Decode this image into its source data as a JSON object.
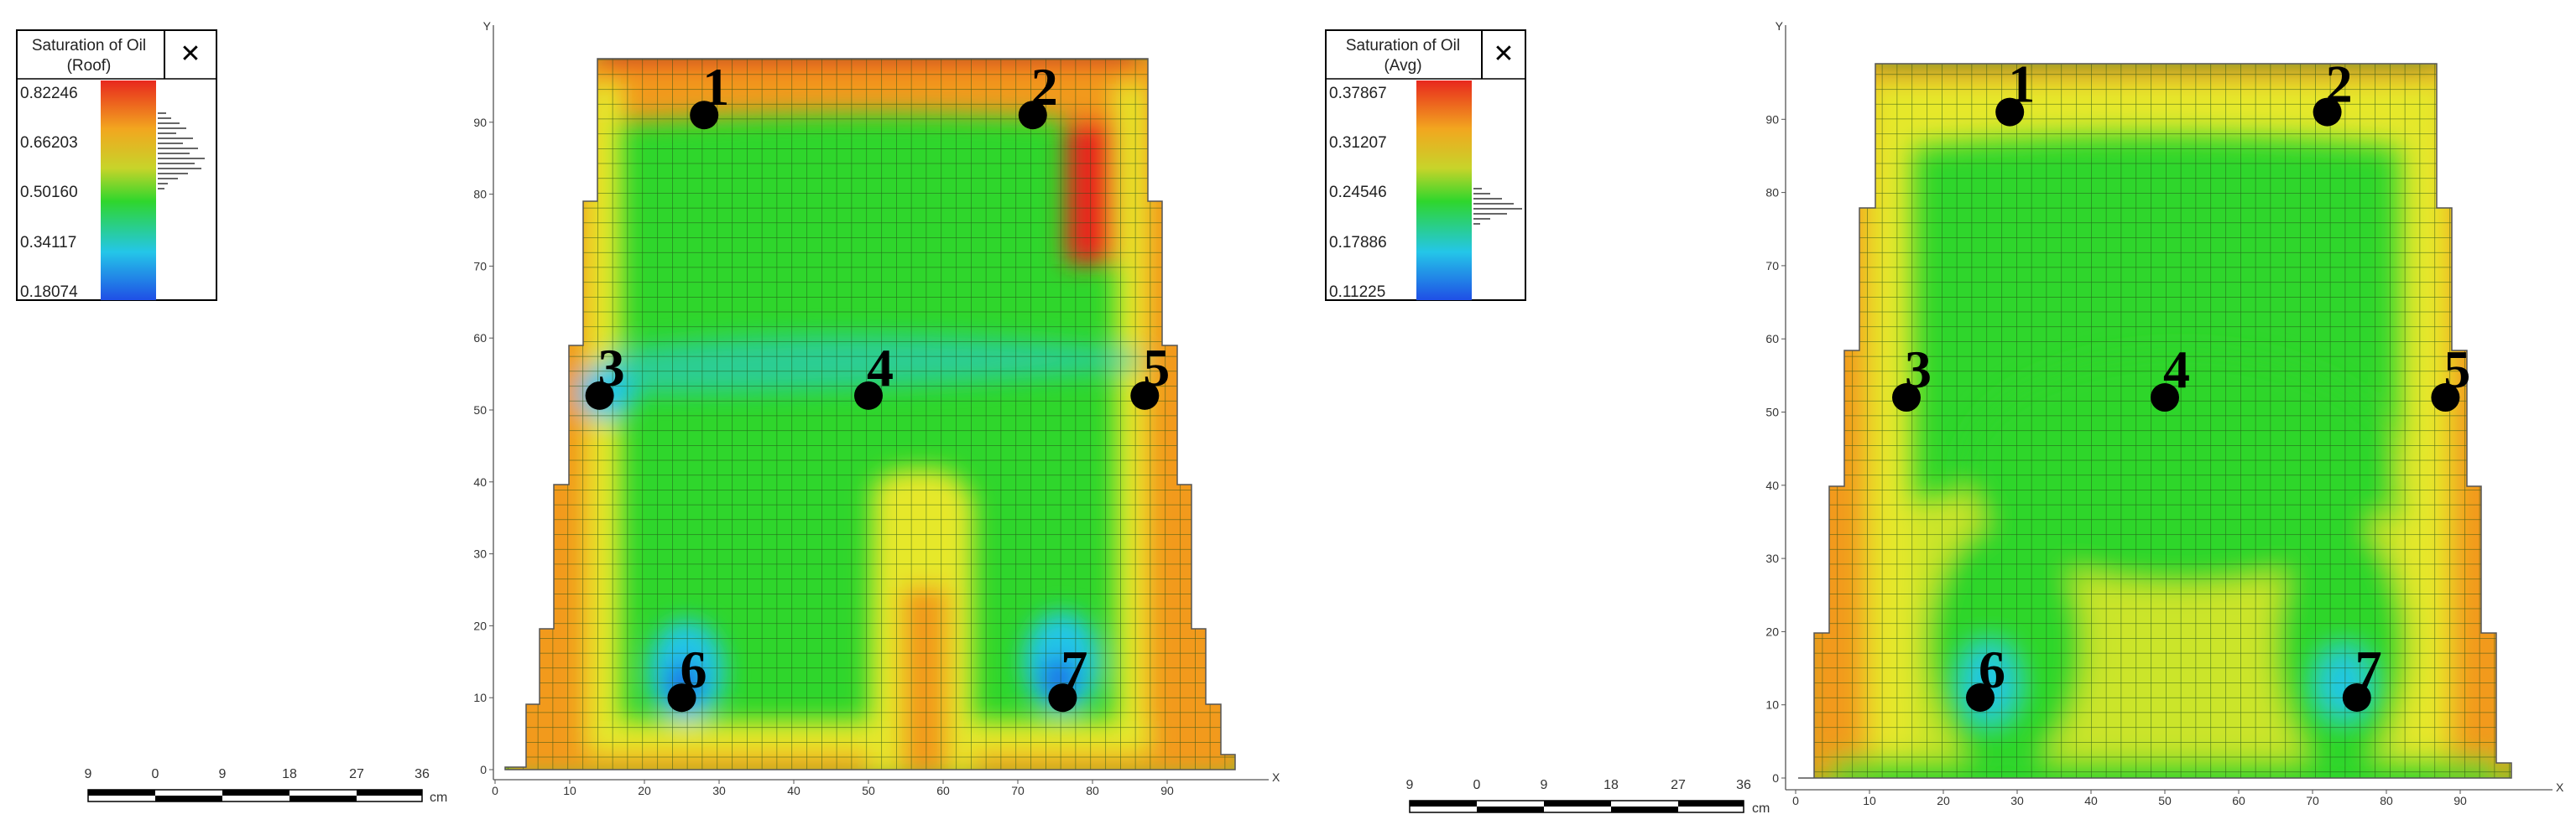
{
  "panels": [
    {
      "id": "left",
      "legend": {
        "title_line1": "Saturation of Oil",
        "title_line2": "(Roof)",
        "ticks": [
          "0.82246",
          "0.66203",
          "0.50160",
          "0.34117",
          "0.18074"
        ],
        "close_glyph": "✕"
      },
      "scale_bar": {
        "labels": [
          "9",
          "0",
          "9",
          "18",
          "27",
          "36"
        ],
        "unit": "cm"
      },
      "axes": {
        "x_ticks": [
          "0",
          "10",
          "20",
          "30",
          "40",
          "50",
          "60",
          "70",
          "80",
          "90"
        ],
        "y_ticks": [
          "0",
          "10",
          "20",
          "30",
          "40",
          "50",
          "60",
          "70",
          "80",
          "90"
        ],
        "x_letter": "X",
        "y_letter": "Y"
      },
      "wells": [
        {
          "label": "1",
          "x": 28,
          "y": 91
        },
        {
          "label": "2",
          "x": 72,
          "y": 91
        },
        {
          "label": "3",
          "x": 14,
          "y": 52
        },
        {
          "label": "4",
          "x": 50,
          "y": 52
        },
        {
          "label": "5",
          "x": 87,
          "y": 52
        },
        {
          "label": "6",
          "x": 25,
          "y": 10
        },
        {
          "label": "7",
          "x": 76,
          "y": 10
        }
      ]
    },
    {
      "id": "right",
      "legend": {
        "title_line1": "Saturation of Oil",
        "title_line2": "(Avg)",
        "ticks": [
          "0.37867",
          "0.31207",
          "0.24546",
          "0.17886",
          "0.11225"
        ],
        "close_glyph": "✕"
      },
      "scale_bar": {
        "labels": [
          "9",
          "0",
          "9",
          "18",
          "27",
          "36"
        ],
        "unit": "cm"
      },
      "axes": {
        "x_ticks": [
          "0",
          "10",
          "20",
          "30",
          "40",
          "50",
          "60",
          "70",
          "80",
          "90"
        ],
        "y_ticks": [
          "0",
          "10",
          "20",
          "30",
          "40",
          "50",
          "60",
          "70",
          "80",
          "90"
        ],
        "x_letter": "X",
        "y_letter": "Y"
      },
      "wells": [
        {
          "label": "1",
          "x": 29,
          "y": 91
        },
        {
          "label": "2",
          "x": 72,
          "y": 91
        },
        {
          "label": "3",
          "x": 15,
          "y": 52
        },
        {
          "label": "4",
          "x": 50,
          "y": 52
        },
        {
          "label": "5",
          "x": 88,
          "y": 52
        },
        {
          "label": "6",
          "x": 25,
          "y": 11
        },
        {
          "label": "7",
          "x": 76,
          "y": 11
        }
      ]
    }
  ],
  "colors": {
    "red": "#e8281e",
    "orange": "#f29a1f",
    "yellow": "#e6e82a",
    "green": "#2fd62c",
    "cyan": "#24c6e8",
    "blue": "#1f6be6",
    "grid_line": "#1e4a14",
    "well_marker": "#000000"
  }
}
